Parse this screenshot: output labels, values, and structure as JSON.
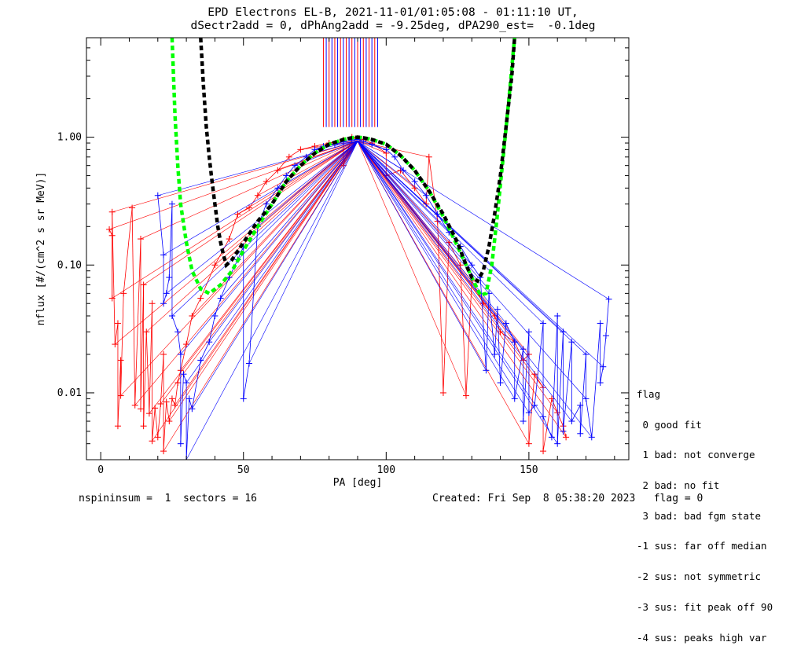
{
  "title_line1": "EPD Electrons EL-B, 2021-11-01/01:05:08 - 01:11:10 UT,",
  "title_line2": "dSectr2add = 0, dPhAng2add = -9.25deg, dPA290_est=  -0.1deg",
  "chart_data": {
    "type": "scatter",
    "xlabel": "PA [deg]",
    "ylabel": "nflux [#/(cm^2 s sr MeV)]",
    "xlim": [
      -5,
      185
    ],
    "ylim": [
      0.003,
      6.0
    ],
    "yscale": "log",
    "xticks": [
      0,
      50,
      100,
      150
    ],
    "yticks": [
      0.01,
      0.1,
      1.0
    ],
    "yticklabels": [
      "0.01",
      "0.10",
      "1.00"
    ],
    "grid": false,
    "series": [
      {
        "color": "#ff0000",
        "points": [
          [
            3,
            0.19
          ],
          [
            4,
            0.17
          ],
          [
            4,
            0.055
          ],
          [
            6,
            0.035
          ],
          [
            5,
            0.024
          ],
          [
            7,
            0.018
          ],
          [
            7,
            0.0095
          ],
          [
            6,
            0.0055
          ],
          [
            4,
            0.26
          ],
          [
            11,
            0.28
          ],
          [
            14,
            0.16
          ],
          [
            8,
            0.06
          ],
          [
            15,
            0.07
          ],
          [
            18,
            0.05
          ],
          [
            16,
            0.03
          ],
          [
            22,
            0.02
          ],
          [
            12,
            0.008
          ],
          [
            14,
            0.0075
          ],
          [
            17,
            0.0069
          ],
          [
            19,
            0.0076
          ],
          [
            21,
            0.0082
          ],
          [
            23,
            0.0085
          ],
          [
            24,
            0.006
          ],
          [
            15,
            0.0055
          ],
          [
            18,
            0.0042
          ],
          [
            20,
            0.0045
          ],
          [
            22,
            0.0035
          ],
          [
            25,
            0.009
          ],
          [
            26,
            0.008
          ],
          [
            27,
            0.012
          ],
          [
            28,
            0.015
          ],
          [
            30,
            0.024
          ],
          [
            32,
            0.04
          ],
          [
            35,
            0.055
          ],
          [
            40,
            0.1
          ],
          [
            45,
            0.16
          ],
          [
            48,
            0.25
          ],
          [
            52,
            0.28
          ],
          [
            55,
            0.35
          ],
          [
            58,
            0.45
          ],
          [
            62,
            0.55
          ],
          [
            66,
            0.7
          ],
          [
            70,
            0.8
          ],
          [
            75,
            0.85
          ],
          [
            80,
            0.9
          ],
          [
            85,
            0.95
          ],
          [
            88,
            1.0
          ],
          [
            90,
            0.98
          ],
          [
            92,
            0.96
          ],
          [
            95,
            0.9
          ],
          [
            100,
            0.75
          ],
          [
            105,
            0.55
          ],
          [
            110,
            0.4
          ],
          [
            114,
            0.3
          ],
          [
            115,
            0.7
          ],
          [
            118,
            0.22
          ],
          [
            122,
            0.15
          ],
          [
            126,
            0.1
          ],
          [
            130,
            0.075
          ],
          [
            134,
            0.05
          ],
          [
            138,
            0.04
          ],
          [
            140,
            0.03
          ],
          [
            145,
            0.025
          ],
          [
            148,
            0.018
          ],
          [
            150,
            0.02
          ],
          [
            152,
            0.014
          ],
          [
            155,
            0.011
          ],
          [
            158,
            0.009
          ],
          [
            160,
            0.007
          ],
          [
            162,
            0.0055
          ],
          [
            150,
            0.004
          ],
          [
            155,
            0.0035
          ],
          [
            163,
            0.0045
          ],
          [
            120,
            0.01
          ],
          [
            128,
            0.0095
          ],
          [
            100,
            0.5
          ],
          [
            85,
            0.6
          ]
        ]
      },
      {
        "color": "#0000ff",
        "points": [
          [
            20,
            0.35
          ],
          [
            25,
            0.3
          ],
          [
            22,
            0.12
          ],
          [
            24,
            0.08
          ],
          [
            23,
            0.06
          ],
          [
            22,
            0.05
          ],
          [
            25,
            0.04
          ],
          [
            27,
            0.03
          ],
          [
            28,
            0.02
          ],
          [
            29,
            0.014
          ],
          [
            30,
            0.012
          ],
          [
            31,
            0.009
          ],
          [
            32,
            0.0075
          ],
          [
            28,
            0.004
          ],
          [
            30,
            0.003
          ],
          [
            35,
            0.018
          ],
          [
            38,
            0.025
          ],
          [
            40,
            0.04
          ],
          [
            42,
            0.055
          ],
          [
            45,
            0.08
          ],
          [
            48,
            0.11
          ],
          [
            50,
            0.14
          ],
          [
            52,
            0.017
          ],
          [
            50,
            0.009
          ],
          [
            55,
            0.2
          ],
          [
            58,
            0.3
          ],
          [
            62,
            0.4
          ],
          [
            65,
            0.5
          ],
          [
            68,
            0.6
          ],
          [
            72,
            0.7
          ],
          [
            75,
            0.8
          ],
          [
            78,
            0.85
          ],
          [
            82,
            0.88
          ],
          [
            85,
            0.92
          ],
          [
            88,
            0.95
          ],
          [
            90,
            0.96
          ],
          [
            92,
            0.93
          ],
          [
            95,
            0.88
          ],
          [
            100,
            0.8
          ],
          [
            103,
            0.7
          ],
          [
            106,
            0.55
          ],
          [
            110,
            0.45
          ],
          [
            114,
            0.35
          ],
          [
            118,
            0.25
          ],
          [
            122,
            0.18
          ],
          [
            126,
            0.14
          ],
          [
            130,
            0.1
          ],
          [
            133,
            0.08
          ],
          [
            136,
            0.06
          ],
          [
            139,
            0.045
          ],
          [
            142,
            0.035
          ],
          [
            145,
            0.025
          ],
          [
            148,
            0.022
          ],
          [
            150,
            0.03
          ],
          [
            155,
            0.035
          ],
          [
            160,
            0.04
          ],
          [
            162,
            0.03
          ],
          [
            165,
            0.025
          ],
          [
            170,
            0.02
          ],
          [
            175,
            0.035
          ],
          [
            178,
            0.054
          ],
          [
            177,
            0.028
          ],
          [
            176,
            0.016
          ],
          [
            175,
            0.012
          ],
          [
            170,
            0.009
          ],
          [
            168,
            0.008
          ],
          [
            165,
            0.006
          ],
          [
            162,
            0.005
          ],
          [
            160,
            0.004
          ],
          [
            158,
            0.0045
          ],
          [
            155,
            0.0065
          ],
          [
            152,
            0.008
          ],
          [
            150,
            0.007
          ],
          [
            148,
            0.006
          ],
          [
            145,
            0.009
          ],
          [
            140,
            0.012
          ],
          [
            135,
            0.015
          ],
          [
            138,
            0.02
          ],
          [
            172,
            0.0045
          ],
          [
            168,
            0.0048
          ]
        ]
      }
    ],
    "fit_curves": [
      {
        "color": "#00ff00",
        "style": "dashed",
        "points": [
          [
            25,
            6.0
          ],
          [
            26,
            1.5
          ],
          [
            27,
            0.6
          ],
          [
            28,
            0.3
          ],
          [
            30,
            0.15
          ],
          [
            32,
            0.09
          ],
          [
            35,
            0.065
          ],
          [
            38,
            0.06
          ],
          [
            42,
            0.07
          ],
          [
            46,
            0.09
          ],
          [
            50,
            0.13
          ],
          [
            55,
            0.2
          ],
          [
            60,
            0.3
          ],
          [
            65,
            0.45
          ],
          [
            70,
            0.6
          ],
          [
            75,
            0.75
          ],
          [
            80,
            0.88
          ],
          [
            85,
            0.96
          ],
          [
            88,
            0.99
          ],
          [
            90,
            1.0
          ],
          [
            92,
            0.99
          ],
          [
            95,
            0.96
          ],
          [
            100,
            0.88
          ],
          [
            105,
            0.72
          ],
          [
            110,
            0.55
          ],
          [
            115,
            0.38
          ],
          [
            120,
            0.24
          ],
          [
            125,
            0.14
          ],
          [
            130,
            0.08
          ],
          [
            133,
            0.058
          ],
          [
            135,
            0.06
          ],
          [
            137,
            0.1
          ],
          [
            139,
            0.25
          ],
          [
            141,
            0.7
          ],
          [
            143,
            2.0
          ],
          [
            145,
            6.0
          ]
        ]
      },
      {
        "color": "#000000",
        "style": "dashed",
        "points": [
          [
            35,
            6.0
          ],
          [
            36,
            2.5
          ],
          [
            37,
            1.2
          ],
          [
            38,
            0.7
          ],
          [
            39,
            0.45
          ],
          [
            40,
            0.3
          ],
          [
            41,
            0.2
          ],
          [
            42,
            0.15
          ],
          [
            43,
            0.12
          ],
          [
            44,
            0.1
          ],
          [
            46,
            0.11
          ],
          [
            50,
            0.15
          ],
          [
            55,
            0.22
          ],
          [
            60,
            0.3
          ],
          [
            65,
            0.45
          ],
          [
            70,
            0.6
          ],
          [
            75,
            0.75
          ],
          [
            80,
            0.88
          ],
          [
            85,
            0.96
          ],
          [
            88,
            0.99
          ],
          [
            90,
            1.0
          ],
          [
            92,
            0.99
          ],
          [
            95,
            0.96
          ],
          [
            100,
            0.88
          ],
          [
            105,
            0.72
          ],
          [
            110,
            0.55
          ],
          [
            115,
            0.38
          ],
          [
            120,
            0.25
          ],
          [
            125,
            0.15
          ],
          [
            128,
            0.1
          ],
          [
            130,
            0.08
          ],
          [
            132,
            0.075
          ],
          [
            134,
            0.09
          ],
          [
            136,
            0.14
          ],
          [
            138,
            0.25
          ],
          [
            140,
            0.5
          ],
          [
            142,
            1.2
          ],
          [
            144,
            3.0
          ],
          [
            145,
            6.0
          ]
        ]
      }
    ],
    "vertical_lines_x": [
      78,
      79,
      80,
      81,
      82,
      83,
      84,
      85,
      86,
      87,
      88,
      89,
      90,
      91,
      92,
      93,
      94,
      95,
      96,
      97
    ],
    "vertical_lines_ymin": 1.2
  },
  "legend": {
    "header": "flag",
    "items": [
      " 0 good fit",
      " 1 bad: not converge",
      " 2 bad: no fit",
      " 3 bad: bad fgm state",
      "-1 sus: far off median",
      "-2 sus: not symmetric",
      "-3 sus: fit peak off 90",
      "-4 sus: peaks high var"
    ]
  },
  "footer": {
    "left": "nspininsum =  1  sectors = 16",
    "right": "Created: Fri Sep  8 05:38:20 2023   flag = 0"
  }
}
